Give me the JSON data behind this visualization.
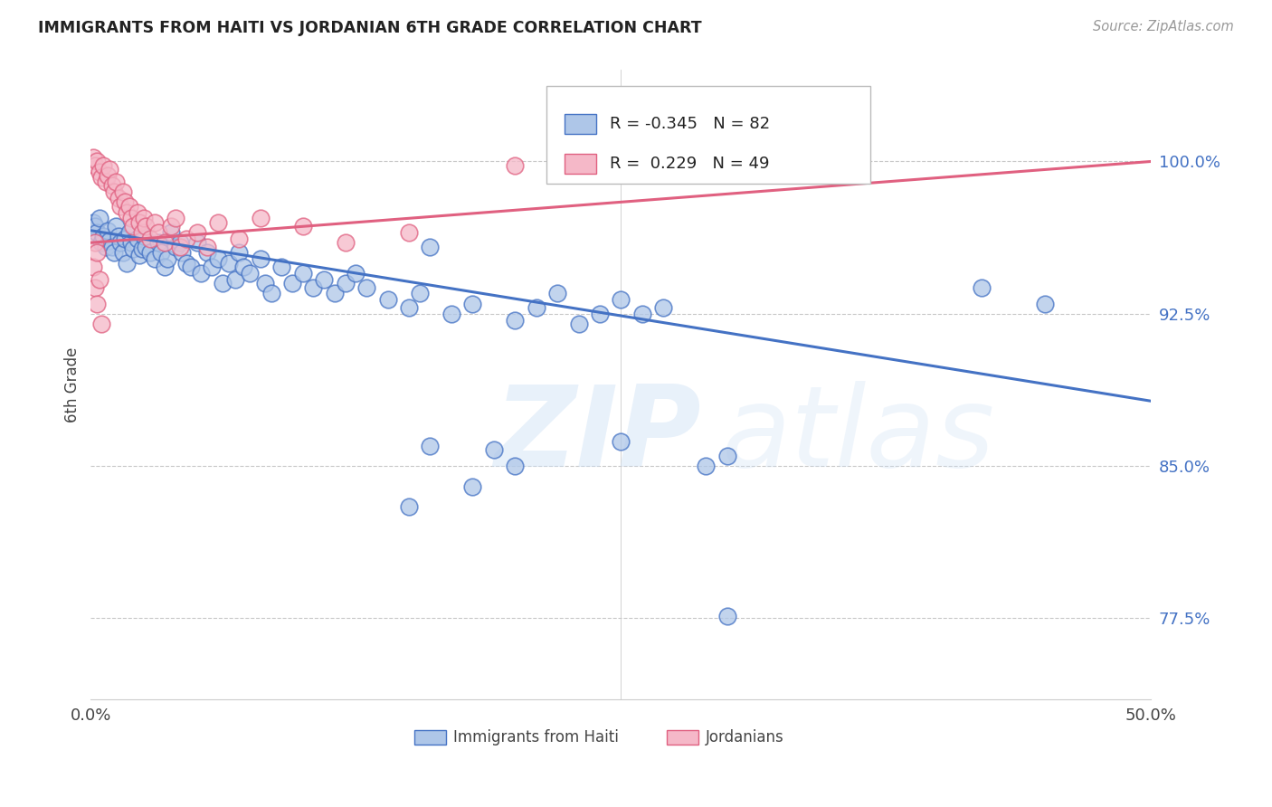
{
  "title": "IMMIGRANTS FROM HAITI VS JORDANIAN 6TH GRADE CORRELATION CHART",
  "source": "Source: ZipAtlas.com",
  "ylabel": "6th Grade",
  "ytick_labels": [
    "77.5%",
    "85.0%",
    "92.5%",
    "100.0%"
  ],
  "ytick_values": [
    0.775,
    0.85,
    0.925,
    1.0
  ],
  "xlim": [
    0.0,
    0.5
  ],
  "ylim": [
    0.735,
    1.045
  ],
  "legend_r_blue": "-0.345",
  "legend_n_blue": "82",
  "legend_r_pink": " 0.229",
  "legend_n_pink": "49",
  "blue_color": "#aec6e8",
  "pink_color": "#f5b8c8",
  "blue_line_color": "#4472c4",
  "pink_line_color": "#e06080",
  "blue_scatter": [
    [
      0.001,
      0.97
    ],
    [
      0.002,
      0.968
    ],
    [
      0.003,
      0.965
    ],
    [
      0.004,
      0.972
    ],
    [
      0.005,
      0.96
    ],
    [
      0.006,
      0.963
    ],
    [
      0.007,
      0.958
    ],
    [
      0.008,
      0.966
    ],
    [
      0.009,
      0.961
    ],
    [
      0.01,
      0.958
    ],
    [
      0.011,
      0.955
    ],
    [
      0.012,
      0.968
    ],
    [
      0.013,
      0.963
    ],
    [
      0.014,
      0.96
    ],
    [
      0.015,
      0.955
    ],
    [
      0.016,
      0.962
    ],
    [
      0.017,
      0.95
    ],
    [
      0.018,
      0.965
    ],
    [
      0.019,
      0.96
    ],
    [
      0.02,
      0.957
    ],
    [
      0.022,
      0.962
    ],
    [
      0.023,
      0.954
    ],
    [
      0.024,
      0.957
    ],
    [
      0.025,
      0.963
    ],
    [
      0.026,
      0.958
    ],
    [
      0.028,
      0.955
    ],
    [
      0.03,
      0.952
    ],
    [
      0.032,
      0.96
    ],
    [
      0.033,
      0.955
    ],
    [
      0.035,
      0.948
    ],
    [
      0.036,
      0.952
    ],
    [
      0.038,
      0.965
    ],
    [
      0.04,
      0.958
    ],
    [
      0.042,
      0.96
    ],
    [
      0.043,
      0.955
    ],
    [
      0.045,
      0.95
    ],
    [
      0.047,
      0.948
    ],
    [
      0.05,
      0.96
    ],
    [
      0.052,
      0.945
    ],
    [
      0.055,
      0.955
    ],
    [
      0.057,
      0.948
    ],
    [
      0.06,
      0.952
    ],
    [
      0.062,
      0.94
    ],
    [
      0.065,
      0.95
    ],
    [
      0.068,
      0.942
    ],
    [
      0.07,
      0.955
    ],
    [
      0.072,
      0.948
    ],
    [
      0.075,
      0.945
    ],
    [
      0.08,
      0.952
    ],
    [
      0.082,
      0.94
    ],
    [
      0.085,
      0.935
    ],
    [
      0.09,
      0.948
    ],
    [
      0.095,
      0.94
    ],
    [
      0.1,
      0.945
    ],
    [
      0.105,
      0.938
    ],
    [
      0.11,
      0.942
    ],
    [
      0.115,
      0.935
    ],
    [
      0.12,
      0.94
    ],
    [
      0.125,
      0.945
    ],
    [
      0.13,
      0.938
    ],
    [
      0.14,
      0.932
    ],
    [
      0.15,
      0.928
    ],
    [
      0.155,
      0.935
    ],
    [
      0.16,
      0.958
    ],
    [
      0.17,
      0.925
    ],
    [
      0.18,
      0.93
    ],
    [
      0.2,
      0.922
    ],
    [
      0.21,
      0.928
    ],
    [
      0.22,
      0.935
    ],
    [
      0.23,
      0.92
    ],
    [
      0.24,
      0.925
    ],
    [
      0.25,
      0.932
    ],
    [
      0.26,
      0.925
    ],
    [
      0.27,
      0.928
    ],
    [
      0.29,
      0.85
    ],
    [
      0.3,
      0.855
    ],
    [
      0.16,
      0.86
    ],
    [
      0.18,
      0.84
    ],
    [
      0.19,
      0.858
    ],
    [
      0.25,
      0.862
    ],
    [
      0.15,
      0.83
    ],
    [
      0.2,
      0.85
    ],
    [
      0.3,
      0.776
    ],
    [
      0.33,
      1.0
    ],
    [
      0.42,
      0.938
    ],
    [
      0.45,
      0.93
    ]
  ],
  "pink_scatter": [
    [
      0.001,
      1.002
    ],
    [
      0.002,
      0.998
    ],
    [
      0.003,
      1.0
    ],
    [
      0.004,
      0.995
    ],
    [
      0.005,
      0.992
    ],
    [
      0.006,
      0.998
    ],
    [
      0.007,
      0.99
    ],
    [
      0.008,
      0.993
    ],
    [
      0.009,
      0.996
    ],
    [
      0.01,
      0.988
    ],
    [
      0.011,
      0.985
    ],
    [
      0.012,
      0.99
    ],
    [
      0.013,
      0.982
    ],
    [
      0.014,
      0.978
    ],
    [
      0.015,
      0.985
    ],
    [
      0.016,
      0.98
    ],
    [
      0.017,
      0.975
    ],
    [
      0.018,
      0.978
    ],
    [
      0.019,
      0.972
    ],
    [
      0.02,
      0.968
    ],
    [
      0.022,
      0.975
    ],
    [
      0.023,
      0.97
    ],
    [
      0.024,
      0.965
    ],
    [
      0.025,
      0.972
    ],
    [
      0.026,
      0.968
    ],
    [
      0.028,
      0.962
    ],
    [
      0.03,
      0.97
    ],
    [
      0.032,
      0.965
    ],
    [
      0.035,
      0.96
    ],
    [
      0.038,
      0.968
    ],
    [
      0.04,
      0.972
    ],
    [
      0.042,
      0.958
    ],
    [
      0.045,
      0.962
    ],
    [
      0.05,
      0.965
    ],
    [
      0.055,
      0.958
    ],
    [
      0.06,
      0.97
    ],
    [
      0.07,
      0.962
    ],
    [
      0.08,
      0.972
    ],
    [
      0.1,
      0.968
    ],
    [
      0.12,
      0.96
    ],
    [
      0.15,
      0.965
    ],
    [
      0.002,
      0.96
    ],
    [
      0.001,
      0.948
    ],
    [
      0.003,
      0.955
    ],
    [
      0.002,
      0.938
    ],
    [
      0.004,
      0.942
    ],
    [
      0.003,
      0.93
    ],
    [
      0.005,
      0.92
    ],
    [
      0.2,
      0.998
    ]
  ],
  "blue_line_x": [
    0.0,
    0.5
  ],
  "blue_line_y": [
    0.966,
    0.882
  ],
  "pink_line_x": [
    0.0,
    0.5
  ],
  "pink_line_y": [
    0.96,
    1.0
  ],
  "background_color": "#ffffff",
  "grid_color": "#c8c8c8"
}
